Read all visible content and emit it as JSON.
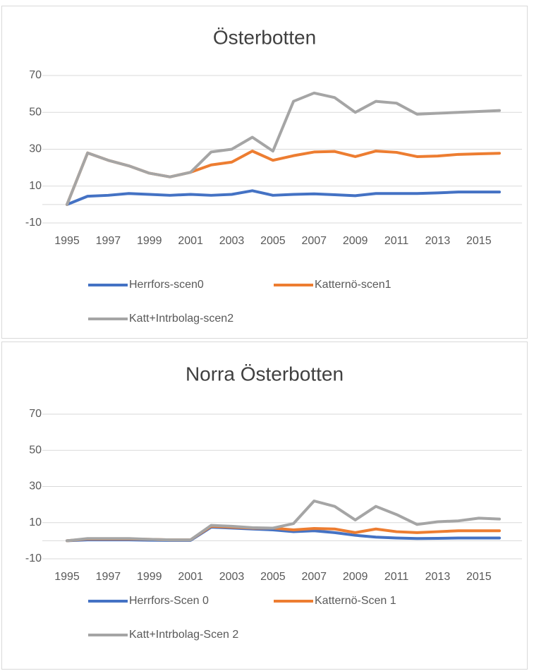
{
  "chart_data": [
    {
      "type": "line",
      "title": "Österbotten",
      "x": [
        1995,
        1996,
        1997,
        1998,
        1999,
        2000,
        2001,
        2002,
        2003,
        2004,
        2005,
        2006,
        2007,
        2008,
        2009,
        2010,
        2011,
        2012,
        2013,
        2014,
        2015,
        2016
      ],
      "xlim": [
        1995,
        2016
      ],
      "xticks": [
        1995,
        1997,
        1999,
        2001,
        2003,
        2005,
        2007,
        2009,
        2011,
        2013,
        2015
      ],
      "ylim": [
        -10,
        70
      ],
      "yticks": [
        -10,
        10,
        30,
        50,
        70
      ],
      "grid": true,
      "legend": "bottom",
      "series": [
        {
          "name": "Herrfors-scen0",
          "color": "#4472c4",
          "values": [
            0,
            4.5,
            5,
            6,
            5.5,
            5,
            5.5,
            5,
            5.5,
            7.5,
            5,
            5.5,
            5.8,
            5.3,
            4.8,
            6,
            6,
            6,
            6.3,
            6.8,
            6.8,
            6.8
          ]
        },
        {
          "name": "Katternö-scen1",
          "color": "#ed7d31",
          "values": [
            0,
            28,
            24,
            21,
            17,
            15,
            17.5,
            21.5,
            23,
            29,
            24,
            26.5,
            28.5,
            28.8,
            26,
            29,
            28.3,
            26,
            26.3,
            27.2,
            27.5,
            27.8
          ]
        },
        {
          "name": "Katt+Intrbolag-scen2",
          "color": "#a5a5a5",
          "values": [
            0,
            28,
            24,
            21,
            17,
            15,
            17.5,
            28.5,
            30,
            36.5,
            29,
            56,
            60.5,
            58,
            50,
            56,
            55,
            49,
            49.5,
            50,
            50.5,
            51
          ]
        }
      ]
    },
    {
      "type": "line",
      "title": "Norra Österbotten",
      "x": [
        1995,
        1996,
        1997,
        1998,
        1999,
        2000,
        2001,
        2002,
        2003,
        2004,
        2005,
        2006,
        2007,
        2008,
        2009,
        2010,
        2011,
        2012,
        2013,
        2014,
        2015,
        2016
      ],
      "xlim": [
        1995,
        2016
      ],
      "xticks": [
        1995,
        1997,
        1999,
        2001,
        2003,
        2005,
        2007,
        2009,
        2011,
        2013,
        2015
      ],
      "ylim": [
        -10,
        70
      ],
      "yticks": [
        -10,
        10,
        30,
        50,
        70
      ],
      "grid": true,
      "legend": "bottom",
      "series": [
        {
          "name": "Herrfors-Scen 0",
          "color": "#4472c4",
          "values": [
            0,
            0.5,
            0.5,
            0.5,
            0.3,
            0.2,
            0.2,
            7.5,
            7,
            6.5,
            6,
            5,
            5.5,
            4.5,
            3,
            2,
            1.5,
            1.2,
            1.3,
            1.5,
            1.5,
            1.5
          ]
        },
        {
          "name": "Katternö-Scen 1",
          "color": "#ed7d31",
          "values": [
            0,
            1,
            1,
            1,
            0.8,
            0.5,
            0.5,
            8,
            7.5,
            7,
            7,
            6,
            6.8,
            6.5,
            4.5,
            6.5,
            5,
            4.5,
            5,
            5.5,
            5.5,
            5.5
          ]
        },
        {
          "name": "Katt+Intrbolag-Scen 2",
          "color": "#a5a5a5",
          "values": [
            0,
            1.2,
            1.2,
            1.2,
            0.8,
            0.5,
            0.5,
            8.5,
            8,
            7.2,
            7,
            9.5,
            22,
            19,
            11.5,
            19,
            14.5,
            9,
            10.5,
            11,
            12.5,
            12
          ]
        }
      ]
    }
  ]
}
